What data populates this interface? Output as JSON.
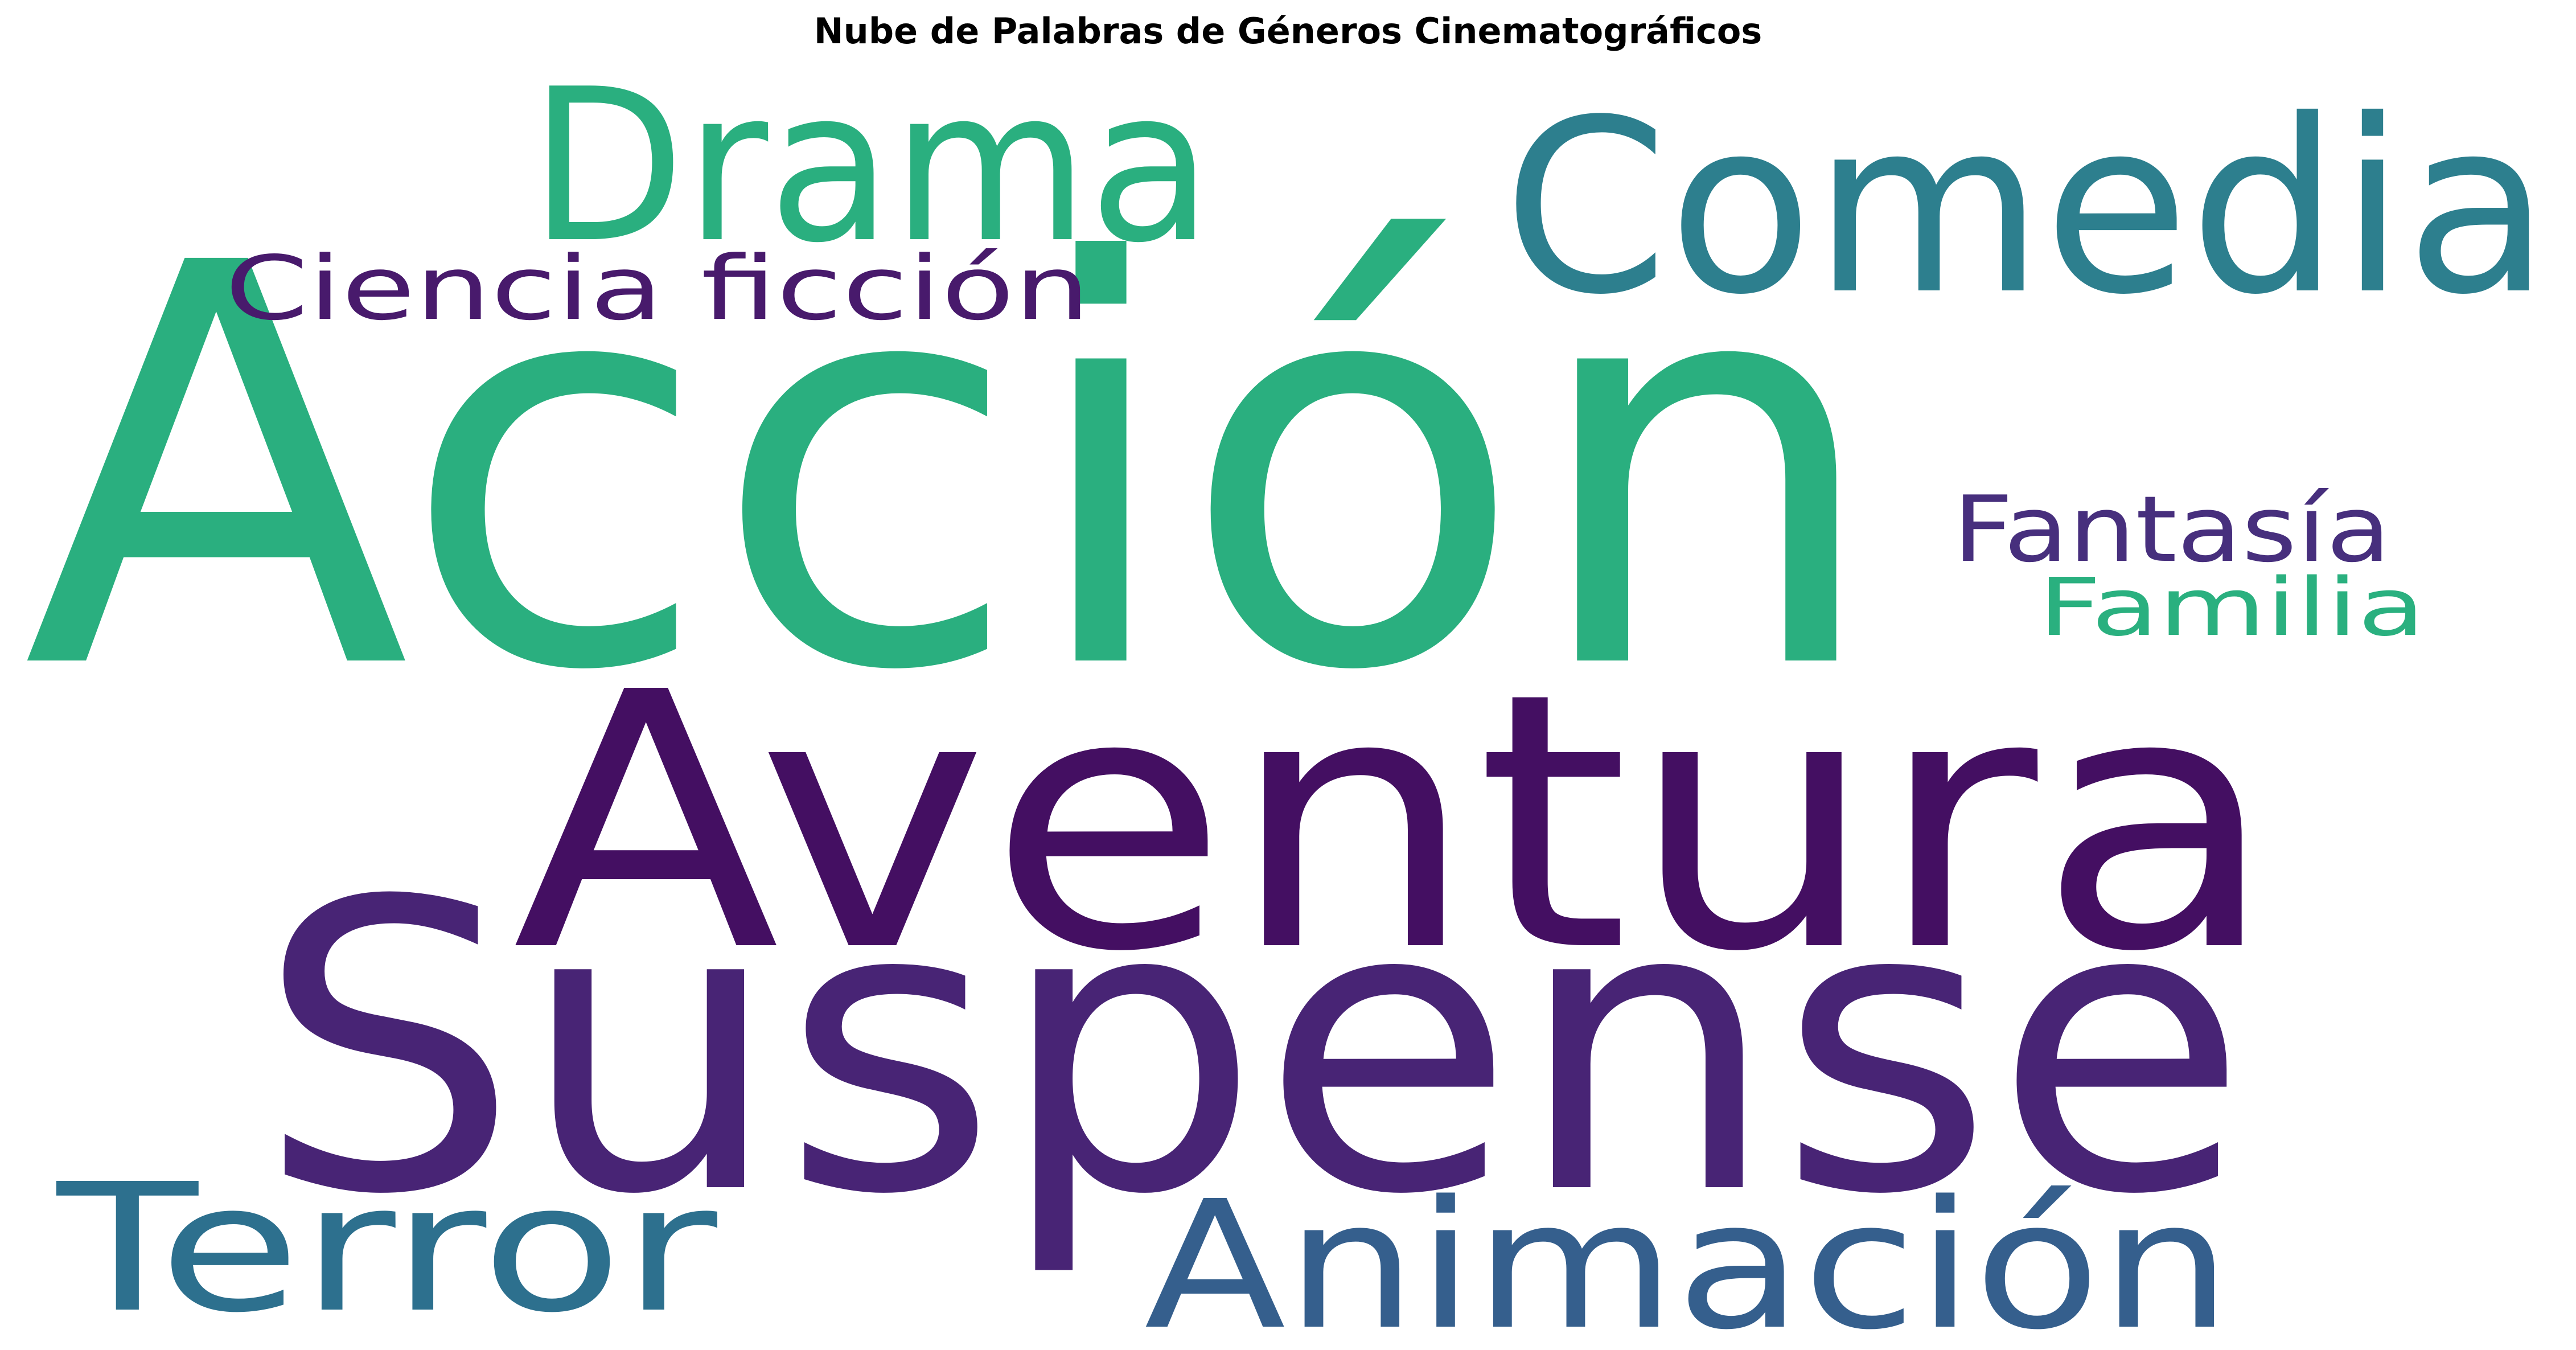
{
  "chart_data": {
    "type": "wordcloud",
    "title": "Nube de Palabras de Géneros Cinematográficos",
    "words": [
      {
        "text": "Acción",
        "color": "#2aaf7f"
      },
      {
        "text": "Suspense",
        "color": "#482475"
      },
      {
        "text": "Aventura",
        "color": "#440f62"
      },
      {
        "text": "Comedia",
        "color": "#2d7f8e"
      },
      {
        "text": "Drama",
        "color": "#2aaf7f"
      },
      {
        "text": "Animación",
        "color": "#355f8d"
      },
      {
        "text": "Terror",
        "color": "#2d708e"
      },
      {
        "text": "Ciencia ficción",
        "color": "#481a6c"
      },
      {
        "text": "Fantasía",
        "color": "#472f7d"
      },
      {
        "text": "Familia",
        "color": "#2ab07f"
      }
    ]
  }
}
